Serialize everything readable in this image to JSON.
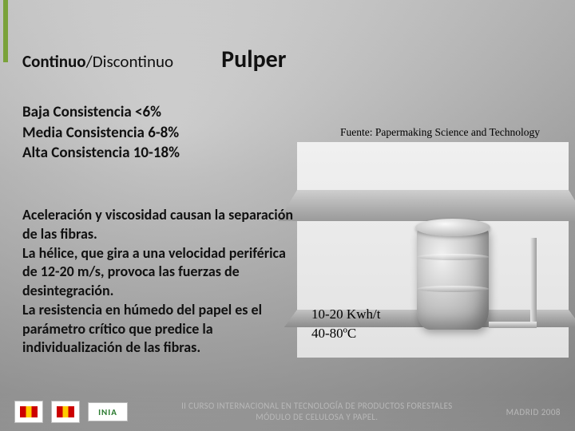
{
  "colors": {
    "accent": "#7aa23a",
    "text": "#111111",
    "footer_text": "#b8b8b8",
    "bg_top": "#d8d8d8",
    "bg_bottom": "#a8a8a8",
    "diagram_bg": "#ffffff"
  },
  "header": {
    "mode_bold": "Continuo",
    "mode_rest": "/Discontinuo",
    "title": "Pulper"
  },
  "consistency": {
    "low": "Baja Consistencia <6%",
    "mid": "Media Consistencia 6-8%",
    "high": "Alta Consistencia 10-18%"
  },
  "source": "Fuente: Papermaking Science and Technology",
  "body": {
    "p1": "Aceleración y viscosidad causan la separación de las fibras.",
    "p2": "La hélice, que gira a una velocidad periférica de 12-20 m/s, provoca las fuerzas de desintegración.",
    "p3": "La resistencia en húmedo del papel es el parámetro crítico que predice la individualización de las fibras."
  },
  "metrics": {
    "energy": "10-20 Kwh/t",
    "temp": "40-80ºC"
  },
  "footer": {
    "inia": "INIA",
    "lines": "II CURSO INTERNACIONAL EN TECNOLOGÍA DE PRODUCTOS FORESTALES\nMÓDULO DE CELULOSA Y PAPEL.",
    "right": "MADRID 2008"
  }
}
